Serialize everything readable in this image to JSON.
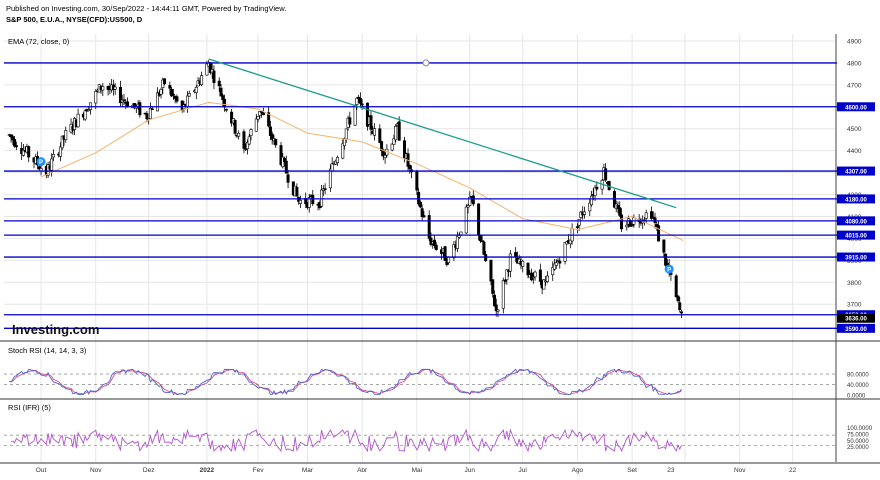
{
  "header": {
    "published": "Published on Investing.com, 30/Sep/2022 - 14:44:11 GMT, Powered by TradingView.",
    "symbol": "S&P 500, E.U.A., NYSE(CFD):US500, D"
  },
  "watermark": "Investing.com",
  "colors": {
    "grid": "#e6e6e6",
    "horizontal_lines": "#0000cc",
    "trendline": "#1a9c8c",
    "ema": "#f5b36a",
    "stoch_k": "#4a63d6",
    "stoch_d": "#e05080",
    "rsi": "#b056c9",
    "marker": "#1e90ff"
  },
  "chart_data": [
    {
      "type": "candlestick",
      "title": "S&P 500, E.U.A., NYSE(CFD):US500, D",
      "indicator_label": "EMA (72, close, 0)",
      "ylim": [
        3560,
        4960
      ],
      "y_ticks": [
        3700,
        3800,
        3900,
        4000,
        4100,
        4200,
        4300,
        4400,
        4500,
        4600,
        4700,
        4800,
        4900
      ],
      "x_labels": [
        "Out",
        "Nov",
        "Dez",
        "2022",
        "Fev",
        "Mar",
        "Abr",
        "Mai",
        "Jun",
        "Jul",
        "Ago",
        "Set",
        "23",
        "Nov",
        "22"
      ],
      "price_levels": [
        {
          "value": 4800,
          "label": ""
        },
        {
          "value": 4600,
          "label": "4600.00"
        },
        {
          "value": 4307,
          "label": "4307.00"
        },
        {
          "value": 4180,
          "label": "4180.00"
        },
        {
          "value": 4080,
          "label": "4080.00"
        },
        {
          "value": 4015,
          "label": "4015.00"
        },
        {
          "value": 3915,
          "label": "3915.00"
        },
        {
          "value": 3652,
          "label": "3652.00"
        },
        {
          "value": 3590,
          "label": "3590.00"
        }
      ],
      "last_price_label": "3636.00",
      "trendline": {
        "from": {
          "date": "2022-01-04",
          "value": 4818
        },
        "to": {
          "date": "2022-09-26",
          "value": 4140
        }
      },
      "markers": [
        {
          "date": "2021-10-01",
          "text": "P"
        },
        {
          "date": "2022-09-22",
          "text": "P"
        }
      ],
      "ema_series": [
        {
          "date": "2021-10-01",
          "value": 4280
        },
        {
          "date": "2021-11-01",
          "value": 4390
        },
        {
          "date": "2021-12-01",
          "value": 4540
        },
        {
          "date": "2022-01-04",
          "value": 4620
        },
        {
          "date": "2022-02-01",
          "value": 4590
        },
        {
          "date": "2022-03-01",
          "value": 4480
        },
        {
          "date": "2022-04-01",
          "value": 4440
        },
        {
          "date": "2022-05-02",
          "value": 4340
        },
        {
          "date": "2022-06-01",
          "value": 4230
        },
        {
          "date": "2022-07-01",
          "value": 4090
        },
        {
          "date": "2022-08-01",
          "value": 4040
        },
        {
          "date": "2022-09-01",
          "value": 4100
        },
        {
          "date": "2022-09-30",
          "value": 3990
        }
      ]
    },
    {
      "type": "line",
      "title": "Stoch RSI (14, 14, 3, 3)",
      "ylim": [
        0,
        100
      ],
      "y_tick_labels": [
        "80.0000",
        "40.0000",
        "0.0000"
      ],
      "y_ticks": [
        80,
        40,
        0
      ],
      "series": [
        {
          "name": "",
          "values": []
        },
        {
          "name": "",
          "values": []
        }
      ]
    },
    {
      "type": "line",
      "title": "RSI (IFR) (5)",
      "ylim": [
        0,
        100
      ],
      "y_tick_labels": [
        "100.0000",
        "75.0000",
        "50.0000",
        "25.0000"
      ],
      "y_ticks": [
        100,
        75,
        50,
        25
      ],
      "series": [
        {
          "name": "",
          "values": []
        }
      ]
    }
  ]
}
